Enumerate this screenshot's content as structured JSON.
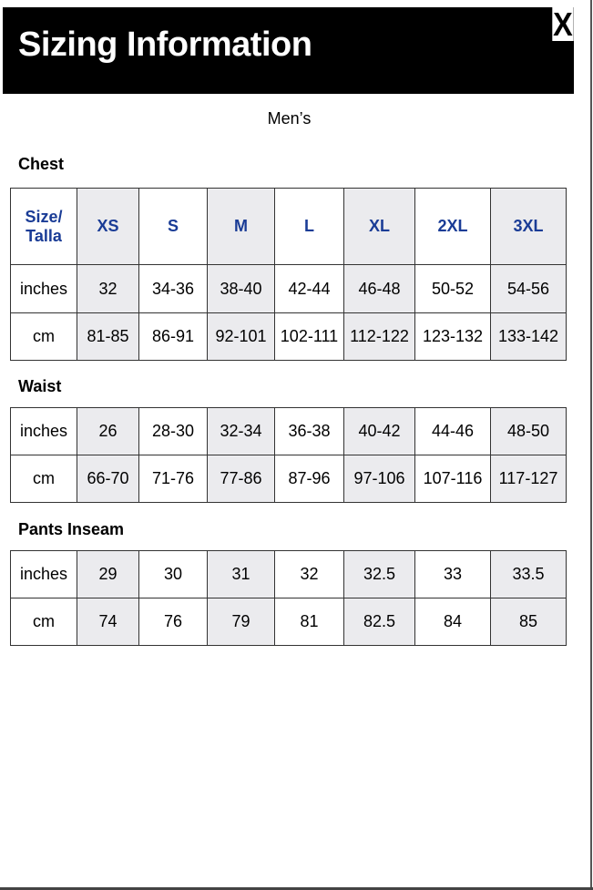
{
  "title": "Sizing Information",
  "close_label": "X",
  "subtitle": "Men’s",
  "colors": {
    "header_bg": "#000000",
    "size_text": "#1a3c96",
    "shaded_column": "#ebebee"
  },
  "sizes": {
    "label": "Size/ Talla",
    "values": [
      "XS",
      "S",
      "M",
      "L",
      "XL",
      "2XL",
      "3XL"
    ]
  },
  "sections": [
    {
      "label": "Chest",
      "rows": [
        {
          "unit": "inches",
          "values": [
            "32",
            "34-36",
            "38-40",
            "42-44",
            "46-48",
            "50-52",
            "54-56"
          ]
        },
        {
          "unit": "cm",
          "values": [
            "81-85",
            "86-91",
            "92-101",
            "102-111",
            "112-122",
            "123-132",
            "133-142"
          ]
        }
      ]
    },
    {
      "label": "Waist",
      "rows": [
        {
          "unit": "inches",
          "values": [
            "26",
            "28-30",
            "32-34",
            "36-38",
            "40-42",
            "44-46",
            "48-50"
          ]
        },
        {
          "unit": "cm",
          "values": [
            "66-70",
            "71-76",
            "77-86",
            "87-96",
            "97-106",
            "107-116",
            "117-127"
          ]
        }
      ]
    },
    {
      "label": "Pants Inseam",
      "rows": [
        {
          "unit": "inches",
          "values": [
            "29",
            "30",
            "31",
            "32",
            "32.5",
            "33",
            "33.5"
          ]
        },
        {
          "unit": "cm",
          "values": [
            "74",
            "76",
            "79",
            "81",
            "82.5",
            "84",
            "85"
          ]
        }
      ]
    }
  ]
}
